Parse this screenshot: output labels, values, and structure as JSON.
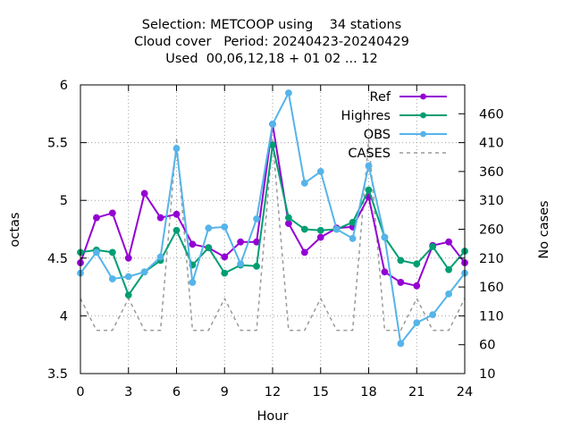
{
  "chart_data": {
    "type": "line",
    "title": [
      "Selection: METCOOP using    34 stations",
      "Cloud cover   Period: 20240423-20240429",
      "Used  00,06,12,18 + 01 02 ... 12"
    ],
    "xlabel": "Hour",
    "ylabel": "octas",
    "y2label": "No cases",
    "xlim": [
      0,
      24
    ],
    "ylim": [
      3.5,
      6
    ],
    "y2lim": [
      10,
      510
    ],
    "xticks": [
      "0",
      "3",
      "6",
      "9",
      "12",
      "15",
      "18",
      "21",
      "24"
    ],
    "yticks": [
      "3.5",
      "4",
      "4.5",
      "5",
      "5.5",
      "6"
    ],
    "y2ticks": [
      "10",
      "60",
      "110",
      "160",
      "210",
      "260",
      "310",
      "360",
      "410",
      "460"
    ],
    "grid": true,
    "legend_position": "top-right",
    "x": [
      0,
      1,
      2,
      3,
      4,
      5,
      6,
      7,
      8,
      9,
      10,
      11,
      12,
      13,
      14,
      15,
      16,
      17,
      18,
      19,
      20,
      21,
      22,
      23,
      24
    ],
    "series": [
      {
        "name": "Ref",
        "color": "#9400d3",
        "axis": "left",
        "style": "solid-markers",
        "values": [
          4.46,
          4.85,
          4.89,
          4.5,
          5.06,
          4.85,
          4.88,
          4.62,
          4.59,
          4.51,
          4.64,
          4.64,
          5.66,
          4.8,
          4.55,
          4.68,
          4.76,
          4.77,
          5.03,
          4.38,
          4.29,
          4.26,
          4.61,
          4.64,
          4.46
        ]
      },
      {
        "name": "Highres",
        "color": "#009e73",
        "axis": "left",
        "style": "solid-markers",
        "values": [
          4.55,
          4.57,
          4.55,
          4.18,
          4.38,
          4.48,
          4.74,
          4.44,
          4.59,
          4.37,
          4.44,
          4.43,
          5.48,
          4.85,
          4.75,
          4.74,
          4.75,
          4.81,
          5.09,
          4.68,
          4.48,
          4.45,
          4.6,
          4.4,
          4.56
        ]
      },
      {
        "name": "OBS",
        "color": "#56b4e9",
        "axis": "left",
        "style": "solid-markers",
        "values": [
          4.37,
          4.55,
          4.32,
          4.34,
          4.38,
          4.51,
          5.45,
          4.29,
          4.76,
          4.77,
          4.45,
          4.84,
          5.66,
          5.93,
          5.15,
          5.25,
          4.75,
          4.67,
          5.3,
          4.68,
          3.76,
          3.94,
          4.01,
          4.19,
          4.37
        ]
      },
      {
        "name": "CASES",
        "color": "#9a9a9a",
        "axis": "right",
        "style": "dashed",
        "values": [
          140,
          85,
          85,
          140,
          85,
          85,
          415,
          85,
          85,
          140,
          85,
          85,
          415,
          85,
          85,
          140,
          85,
          85,
          415,
          85,
          85,
          140,
          85,
          85,
          140
        ]
      }
    ]
  }
}
